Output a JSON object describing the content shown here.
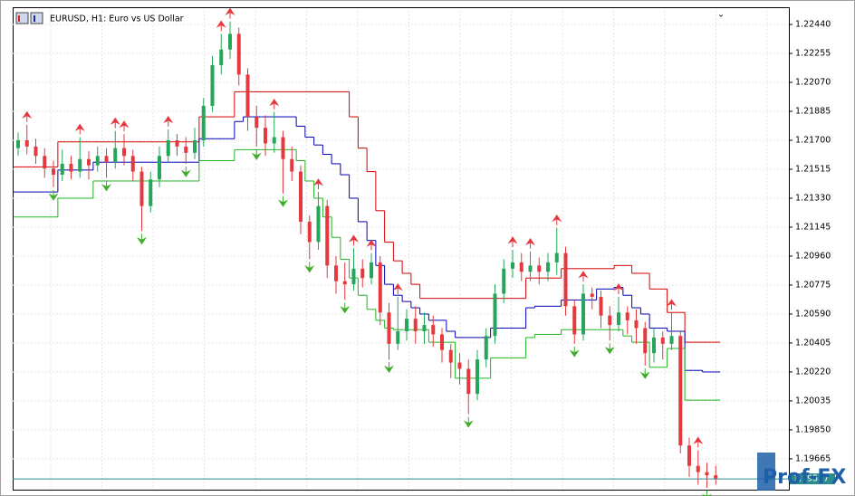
{
  "chart_data": {
    "type": "candlestick",
    "title": "EURUSD, H1:  Euro vs US Dollar",
    "watermark": "Prof-FX",
    "bull_color": "#26a65b",
    "bear_color": "#e5393f",
    "up_arrow_color": "#e5393f",
    "down_arrow_color": "#3fae2a",
    "ylim": [
      1.19468,
      1.2255
    ],
    "yticks": [
      {
        "value": 1.2244,
        "label": "1.22440"
      },
      {
        "value": 1.22255,
        "label": "1.22255"
      },
      {
        "value": 1.2207,
        "label": "1.22070"
      },
      {
        "value": 1.21885,
        "label": "1.21885"
      },
      {
        "value": 1.217,
        "label": "1.21700"
      },
      {
        "value": 1.21515,
        "label": "1.21515"
      },
      {
        "value": 1.2133,
        "label": "1.21330"
      },
      {
        "value": 1.21145,
        "label": "1.21145"
      },
      {
        "value": 1.2096,
        "label": "1.20960"
      },
      {
        "value": 1.20775,
        "label": "1.20775"
      },
      {
        "value": 1.2059,
        "label": "1.20590"
      },
      {
        "value": 1.20405,
        "label": "1.20405"
      },
      {
        "value": 1.2022,
        "label": "1.20220"
      },
      {
        "value": 1.20035,
        "label": "1.20035"
      },
      {
        "value": 1.1985,
        "label": "1.19850"
      },
      {
        "value": 1.19665,
        "label": "1.19665"
      }
    ],
    "grid": true,
    "last_price": 1.19537,
    "last_price_color": "#2a8c8c",
    "open": [
      1.2165,
      1.217,
      1.2166,
      1.216,
      1.2152,
      1.2148,
      1.2155,
      1.215,
      1.2158,
      1.2154,
      1.216,
      1.2156,
      1.2165,
      1.216,
      1.215,
      1.2128,
      1.2145,
      1.216,
      1.217,
      1.2166,
      1.2162,
      1.217,
      1.2192,
      1.2218,
      1.2228,
      1.2238,
      1.2212,
      1.2185,
      1.2178,
      1.2168,
      1.2172,
      1.2158,
      1.215,
      1.2118,
      1.2105,
      1.2128,
      1.209,
      1.208,
      1.2078,
      1.2088,
      1.2082,
      1.2092,
      1.206,
      1.204,
      1.2048,
      1.2056,
      1.2048,
      1.2052,
      1.2046,
      1.2036,
      1.2028,
      1.2024,
      1.2008,
      1.203,
      1.2045,
      1.2072,
      1.2088,
      1.2092,
      1.2086,
      1.209,
      1.2086,
      1.2092,
      1.2098,
      1.2064,
      1.2046,
      1.2072,
      1.207,
      1.2058,
      1.2052,
      1.206,
      1.2055,
      1.205,
      1.2034,
      1.2044,
      1.204,
      1.2045,
      1.1975,
      1.1962,
      1.1958,
      1.1956
    ],
    "high": [
      1.2175,
      1.218,
      1.2171,
      1.2165,
      1.2157,
      1.2164,
      1.216,
      1.2172,
      1.2163,
      1.2166,
      1.2165,
      1.2176,
      1.2174,
      1.2164,
      1.2153,
      1.215,
      1.2166,
      1.2177,
      1.2174,
      1.2172,
      1.2178,
      1.2197,
      1.2224,
      1.2238,
      1.2246,
      1.2242,
      1.2216,
      1.2192,
      1.2186,
      1.2188,
      1.2176,
      1.2166,
      1.2154,
      1.2122,
      1.2137,
      1.2132,
      1.2096,
      1.2092,
      1.2101,
      1.2094,
      1.2098,
      1.2096,
      1.2066,
      1.207,
      1.2062,
      1.2064,
      1.206,
      1.2058,
      1.205,
      1.204,
      1.2034,
      1.203,
      1.2036,
      1.205,
      1.2078,
      1.2094,
      1.21,
      1.2098,
      1.2099,
      1.2095,
      1.2098,
      1.2114,
      1.2102,
      1.2068,
      1.2078,
      1.2076,
      1.2074,
      1.2064,
      1.207,
      1.2064,
      1.2062,
      1.2054,
      1.205,
      1.2048,
      1.206,
      1.2048,
      1.198,
      1.1972,
      1.1964,
      1.1962
    ],
    "low": [
      1.216,
      1.2161,
      1.2155,
      1.2146,
      1.214,
      1.2144,
      1.2145,
      1.2146,
      1.2145,
      1.215,
      1.2146,
      1.2152,
      1.2154,
      1.2144,
      1.2112,
      1.2124,
      1.214,
      1.2156,
      1.216,
      1.2155,
      1.2158,
      1.2166,
      1.2188,
      1.2212,
      1.2222,
      1.2205,
      1.2176,
      1.2166,
      1.216,
      1.2162,
      1.2136,
      1.2144,
      1.211,
      1.2094,
      1.21,
      1.2082,
      1.2072,
      1.2068,
      1.2074,
      1.2076,
      1.2078,
      1.2052,
      1.203,
      1.2036,
      1.2042,
      1.204,
      1.204,
      1.2038,
      1.2028,
      1.2018,
      1.2014,
      1.1995,
      1.2004,
      1.2025,
      1.204,
      1.2066,
      1.2082,
      1.208,
      1.208,
      1.2078,
      1.208,
      1.2084,
      1.2058,
      1.204,
      1.2042,
      1.2062,
      1.205,
      1.2042,
      1.2048,
      1.2046,
      1.204,
      1.2026,
      1.2028,
      1.203,
      1.2036,
      1.197,
      1.1955,
      1.195,
      1.1948,
      1.195
    ],
    "close": [
      1.217,
      1.2166,
      1.216,
      1.2152,
      1.2148,
      1.2155,
      1.215,
      1.2158,
      1.2154,
      1.216,
      1.2156,
      1.2165,
      1.216,
      1.215,
      1.2128,
      1.2145,
      1.216,
      1.217,
      1.2166,
      1.2162,
      1.217,
      1.2192,
      1.2218,
      1.2228,
      1.2238,
      1.2212,
      1.2185,
      1.2178,
      1.2168,
      1.2172,
      1.2158,
      1.215,
      1.2118,
      1.2105,
      1.2128,
      1.209,
      1.208,
      1.2078,
      1.2088,
      1.2082,
      1.2092,
      1.206,
      1.204,
      1.2048,
      1.2056,
      1.2048,
      1.2052,
      1.2046,
      1.2036,
      1.2028,
      1.2024,
      1.2008,
      1.203,
      1.2045,
      1.2072,
      1.2088,
      1.2092,
      1.2086,
      1.209,
      1.2086,
      1.2092,
      1.2098,
      1.2064,
      1.2046,
      1.2072,
      1.207,
      1.2058,
      1.2052,
      1.206,
      1.2055,
      1.205,
      1.2034,
      1.2044,
      1.204,
      1.2045,
      1.1975,
      1.1962,
      1.1958,
      1.1956,
      1.19537
    ],
    "up_arrows": [
      null,
      1.218,
      null,
      null,
      null,
      null,
      null,
      1.2172,
      null,
      null,
      null,
      1.2176,
      1.2174,
      null,
      null,
      null,
      null,
      1.2177,
      null,
      null,
      null,
      null,
      null,
      1.2238,
      1.2246,
      null,
      null,
      null,
      null,
      1.2188,
      null,
      null,
      null,
      null,
      1.2137,
      null,
      null,
      null,
      1.2101,
      null,
      1.2098,
      null,
      null,
      1.207,
      null,
      null,
      null,
      null,
      null,
      null,
      null,
      null,
      null,
      null,
      null,
      null,
      1.21,
      null,
      1.2099,
      null,
      null,
      1.2114,
      null,
      null,
      1.2078,
      null,
      null,
      null,
      1.207,
      null,
      null,
      null,
      null,
      null,
      1.206,
      null,
      null,
      1.1972,
      null,
      null
    ],
    "down_arrows": [
      null,
      null,
      null,
      null,
      1.214,
      null,
      null,
      null,
      null,
      null,
      1.2146,
      null,
      null,
      null,
      1.2112,
      null,
      null,
      null,
      null,
      1.2155,
      null,
      null,
      null,
      null,
      null,
      null,
      null,
      1.2166,
      null,
      null,
      1.2136,
      null,
      null,
      1.2094,
      null,
      null,
      null,
      1.2068,
      null,
      null,
      null,
      null,
      1.203,
      null,
      null,
      null,
      null,
      null,
      null,
      null,
      null,
      1.1995,
      null,
      null,
      null,
      null,
      null,
      null,
      null,
      null,
      null,
      null,
      null,
      1.204,
      null,
      null,
      null,
      1.2042,
      null,
      null,
      null,
      1.2026,
      null,
      null,
      null,
      null,
      null,
      null,
      1.1948,
      null
    ],
    "lines": [
      {
        "color": "#d40000",
        "values": [
          1.2153,
          1.2153,
          1.2153,
          1.2153,
          1.2153,
          1.2169,
          1.2169,
          1.2169,
          1.2169,
          1.2169,
          1.2169,
          1.2169,
          1.2169,
          1.2169,
          1.2169,
          1.2169,
          1.2169,
          1.2169,
          1.2169,
          1.2169,
          1.2169,
          1.2185,
          1.2185,
          1.2185,
          1.2185,
          1.2201,
          1.2201,
          1.2201,
          1.2201,
          1.2201,
          1.2201,
          1.2201,
          1.2201,
          1.2201,
          1.2201,
          1.2201,
          1.2201,
          1.2201,
          1.2185,
          1.2165,
          1.215,
          1.2125,
          1.2105,
          1.2093,
          1.2085,
          1.2078,
          1.2069,
          1.2069,
          1.2069,
          1.2069,
          1.2069,
          1.2069,
          1.2069,
          1.2069,
          1.2069,
          1.2069,
          1.2069,
          1.2069,
          1.2082,
          1.2082,
          1.2082,
          1.2082,
          1.2088,
          1.2088,
          1.2088,
          1.2088,
          1.2088,
          1.2088,
          1.209,
          1.209,
          1.2085,
          1.2085,
          1.2075,
          1.2075,
          1.206,
          1.206,
          1.2041,
          1.2041,
          1.2041,
          1.2041
        ]
      },
      {
        "color": "#0000b4",
        "values": [
          1.2137,
          1.2137,
          1.2137,
          1.2137,
          1.2137,
          1.2151,
          1.2151,
          1.2151,
          1.2151,
          1.2156,
          1.2156,
          1.2156,
          1.2156,
          1.2156,
          1.2156,
          1.2156,
          1.2156,
          1.2156,
          1.2156,
          1.2156,
          1.2156,
          1.2171,
          1.2171,
          1.2171,
          1.2171,
          1.2182,
          1.2185,
          1.2185,
          1.2185,
          1.2185,
          1.2185,
          1.2185,
          1.2179,
          1.2172,
          1.2167,
          1.2161,
          1.2155,
          1.2148,
          1.2133,
          1.2118,
          1.2106,
          1.209,
          1.2078,
          1.2071,
          1.2067,
          1.2063,
          1.2059,
          1.2055,
          1.2055,
          1.2048,
          1.2044,
          1.2044,
          1.2044,
          1.2044,
          1.205,
          1.205,
          1.205,
          1.205,
          1.2063,
          1.2064,
          1.2064,
          1.2064,
          1.2068,
          1.2068,
          1.2068,
          1.2068,
          1.2075,
          1.2075,
          1.2076,
          1.2071,
          1.2063,
          1.2059,
          1.205,
          1.205,
          1.2048,
          1.2048,
          1.2023,
          1.2023,
          1.2022,
          1.2022
        ]
      },
      {
        "color": "#1fb51f",
        "values": [
          1.2121,
          1.2121,
          1.2121,
          1.2121,
          1.2121,
          1.2133,
          1.2133,
          1.2133,
          1.2133,
          1.2144,
          1.2144,
          1.2144,
          1.2144,
          1.2144,
          1.2144,
          1.2144,
          1.2144,
          1.2144,
          1.2144,
          1.2144,
          1.2144,
          1.2157,
          1.2157,
          1.2157,
          1.2157,
          1.2164,
          1.2164,
          1.2164,
          1.2164,
          1.2164,
          1.2164,
          1.2164,
          1.2157,
          1.2144,
          1.2133,
          1.2121,
          1.2108,
          1.2094,
          1.2082,
          1.2071,
          1.2062,
          1.2055,
          1.205,
          1.2049,
          1.2049,
          1.2049,
          1.2049,
          1.2041,
          1.2041,
          1.2041,
          1.2018,
          1.2018,
          1.2018,
          1.2018,
          1.2031,
          1.2031,
          1.2031,
          1.2031,
          1.2044,
          1.2046,
          1.2046,
          1.2046,
          1.2049,
          1.2049,
          1.2049,
          1.2049,
          1.2049,
          1.2049,
          1.2049,
          1.2045,
          1.2041,
          1.2041,
          1.2025,
          1.2025,
          1.2037,
          1.2037,
          1.2004,
          1.2004,
          1.2004,
          1.2004
        ]
      }
    ]
  }
}
